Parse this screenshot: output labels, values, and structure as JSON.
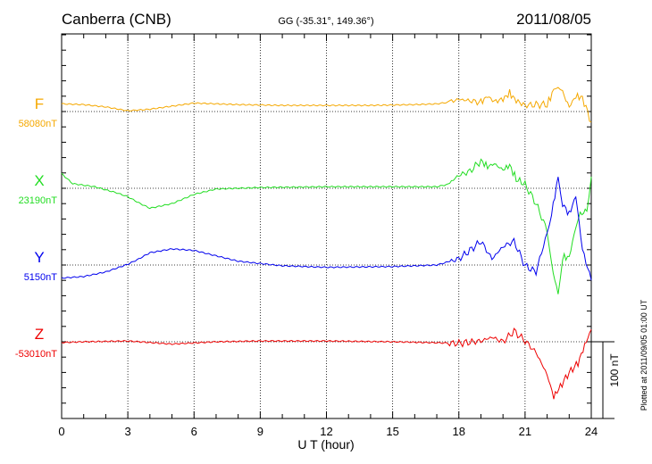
{
  "chart_data": {
    "type": "line",
    "title": "Canberra (CNB)",
    "subtitle": "GG (-35.31°, 149.36°)",
    "date": "2011/08/05",
    "xlabel": "U T (hour)",
    "xlim": [
      0,
      24
    ],
    "x_ticks": [
      "0",
      "3",
      "6",
      "9",
      "12",
      "15",
      "18",
      "21",
      "24"
    ],
    "scale_label": "100 nT",
    "scale_nT": 100,
    "footer": "Plotted at 2011/09/05 01:00 UT",
    "grid": true,
    "series": [
      {
        "name": "F",
        "baseline_label": "58080nT",
        "color": "#f5a800",
        "x": [
          0,
          1,
          2,
          3,
          4,
          5,
          6,
          7,
          8,
          10,
          12,
          14,
          16,
          17,
          17.5,
          18,
          18.5,
          19,
          19.3,
          19.6,
          20,
          20.3,
          20.6,
          21,
          21.5,
          22,
          22.3,
          22.5,
          22.7,
          23,
          23.3,
          23.6,
          24
        ],
        "values": [
          10,
          9,
          6,
          1,
          3,
          7,
          11,
          10,
          9,
          8,
          8,
          8,
          9,
          10,
          12,
          16,
          14,
          12,
          20,
          13,
          16,
          24,
          14,
          8,
          9,
          9,
          28,
          33,
          25,
          6,
          20,
          18,
          -14
        ]
      },
      {
        "name": "X",
        "baseline_label": "23190nT",
        "color": "#22dd22",
        "x": [
          0,
          0.5,
          1.5,
          2.5,
          3,
          3.5,
          4,
          5,
          6,
          7,
          8,
          9,
          12,
          15,
          17,
          17.5,
          18,
          18.5,
          19,
          19.3,
          19.6,
          20,
          20.3,
          20.6,
          21,
          21.5,
          22,
          22.2,
          22.5,
          22.7,
          23,
          23.3,
          23.5,
          23.8,
          24
        ],
        "values": [
          19,
          6,
          2,
          -6,
          -11,
          -19,
          -26,
          -20,
          -8,
          -1,
          0,
          1,
          2,
          2,
          2,
          5,
          17,
          22,
          36,
          28,
          32,
          24,
          30,
          12,
          5,
          -20,
          -55,
          -100,
          -138,
          -90,
          -90,
          -50,
          -35,
          -28,
          15
        ]
      },
      {
        "name": "Y",
        "baseline_label": "5150nT",
        "color": "#0000ee",
        "x": [
          0,
          1,
          2,
          3,
          3.5,
          4,
          5,
          6,
          7,
          8,
          10,
          12,
          15,
          17,
          18,
          18.5,
          19,
          19.5,
          20,
          20.5,
          21,
          21.5,
          22,
          22.2,
          22.5,
          22.7,
          23,
          23.3,
          23.6,
          24
        ],
        "values": [
          -17,
          -15,
          -9,
          1,
          8,
          16,
          21,
          19,
          12,
          5,
          -1,
          -3,
          -2,
          0,
          8,
          19,
          31,
          8,
          24,
          31,
          -1,
          -9,
          42,
          66,
          115,
          80,
          66,
          90,
          20,
          -20
        ]
      },
      {
        "name": "Z",
        "baseline_label": "-53010nT",
        "color": "#ee0000",
        "x": [
          0,
          1,
          3,
          5,
          7,
          9,
          12,
          15,
          18,
          19,
          19.5,
          20,
          20.5,
          21,
          21.5,
          22,
          22.3,
          22.6,
          23,
          23.4,
          23.7,
          24
        ],
        "values": [
          -1,
          0,
          1,
          -3,
          0,
          1,
          1,
          0,
          -2,
          1,
          6,
          0,
          14,
          1,
          -14,
          -43,
          -72,
          -58,
          -40,
          -28,
          -5,
          16
        ]
      }
    ]
  }
}
